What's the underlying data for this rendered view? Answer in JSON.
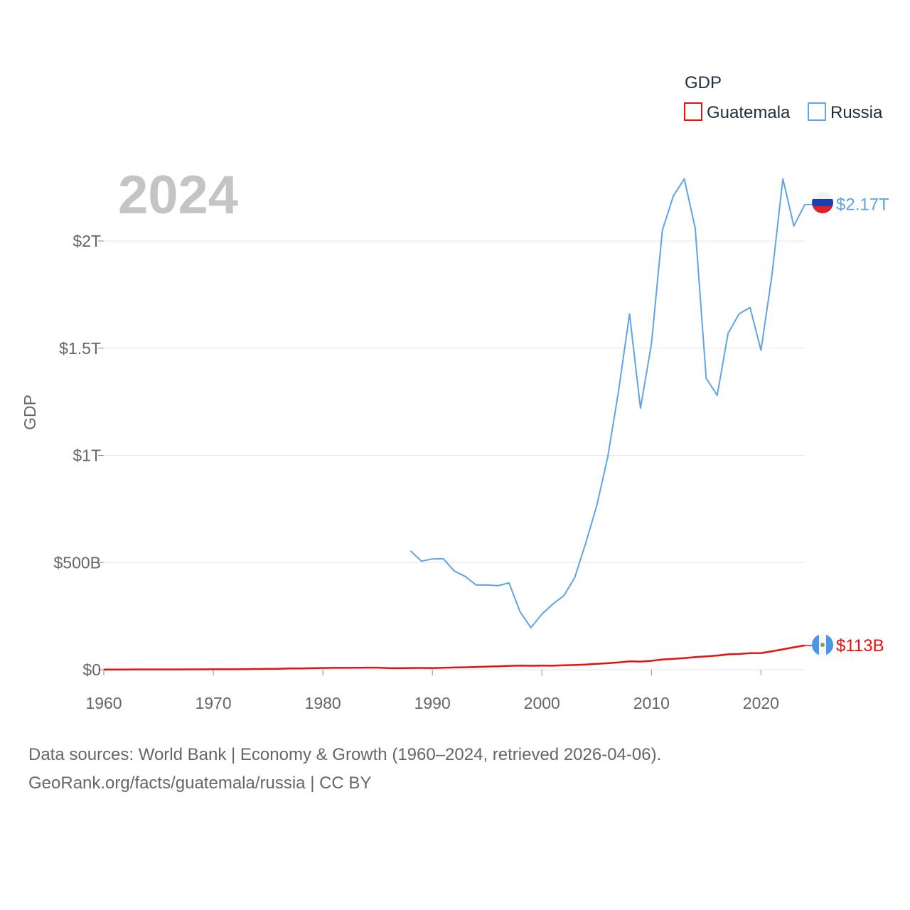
{
  "chart_data": {
    "type": "line",
    "year_label": "2024",
    "ylabel": "GDP",
    "legend_title": "GDP",
    "ylim": [
      0,
      2400000000000
    ],
    "xlim": [
      1960,
      2024
    ],
    "y_ticks": [
      {
        "value": 0,
        "label": "$0"
      },
      {
        "value": 500000000000,
        "label": "$500B"
      },
      {
        "value": 1000000000000,
        "label": "$1T"
      },
      {
        "value": 1500000000000,
        "label": "$1.5T"
      },
      {
        "value": 2000000000000,
        "label": "$2T"
      }
    ],
    "x_ticks": [
      {
        "value": 1960,
        "label": "1960"
      },
      {
        "value": 1970,
        "label": "1970"
      },
      {
        "value": 1980,
        "label": "1980"
      },
      {
        "value": 1990,
        "label": "1990"
      },
      {
        "value": 2000,
        "label": "2000"
      },
      {
        "value": 2010,
        "label": "2010"
      },
      {
        "value": 2020,
        "label": "2020"
      }
    ],
    "series": [
      {
        "name": "Guatemala",
        "color": "#e8110f",
        "end_label": "$113B",
        "x": [
          1960,
          1961,
          1962,
          1963,
          1964,
          1965,
          1966,
          1967,
          1968,
          1969,
          1970,
          1971,
          1972,
          1973,
          1974,
          1975,
          1976,
          1977,
          1978,
          1979,
          1980,
          1981,
          1982,
          1983,
          1984,
          1985,
          1986,
          1987,
          1988,
          1989,
          1990,
          1991,
          1992,
          1993,
          1994,
          1995,
          1996,
          1997,
          1998,
          1999,
          2000,
          2001,
          2002,
          2003,
          2004,
          2005,
          2006,
          2007,
          2008,
          2009,
          2010,
          2011,
          2012,
          2013,
          2014,
          2015,
          2016,
          2017,
          2018,
          2019,
          2020,
          2021,
          2022,
          2023,
          2024
        ],
        "values": [
          1040000000,
          1080000000,
          1140000000,
          1200000000,
          1300000000,
          1330000000,
          1390000000,
          1450000000,
          1600000000,
          1730000000,
          1900000000,
          1980000000,
          2100000000,
          2570000000,
          3160000000,
          3650000000,
          4360000000,
          5480000000,
          6070000000,
          6900000000,
          7880000000,
          8600000000,
          8720000000,
          9050000000,
          9470000000,
          9720000000,
          7230000000,
          7080000000,
          7870000000,
          8410000000,
          7650000000,
          9410000000,
          10440000000,
          11400000000,
          12980000000,
          14660000000,
          15780000000,
          17790000000,
          19400000000,
          18320000000,
          19290000000,
          18700000000,
          20780000000,
          21920000000,
          23960000000,
          27210000000,
          30230000000,
          34110000000,
          39140000000,
          37730000000,
          41340000000,
          47650000000,
          50390000000,
          53850000000,
          58830000000,
          62190000000,
          66040000000,
          71620000000,
          73250000000,
          77170000000,
          77600000000,
          86050000000,
          95000000000,
          104400000000,
          113000000000
        ]
      },
      {
        "name": "Russia",
        "color": "#5fa4e6",
        "end_label": "$2.17T",
        "x": [
          1988,
          1989,
          1990,
          1991,
          1992,
          1993,
          1994,
          1995,
          1996,
          1997,
          1998,
          1999,
          2000,
          2001,
          2002,
          2003,
          2004,
          2005,
          2006,
          2007,
          2008,
          2009,
          2010,
          2011,
          2012,
          2013,
          2014,
          2015,
          2016,
          2017,
          2018,
          2019,
          2020,
          2021,
          2022,
          2023,
          2024
        ],
        "values": [
          554700000000,
          506500000000,
          516800000000,
          517900000000,
          460300000000,
          435100000000,
          395100000000,
          395500000000,
          391700000000,
          404900000000,
          271000000000,
          195900000000,
          259700000000,
          306600000000,
          345500000000,
          430300000000,
          591000000000,
          764000000000,
          989900000000,
          1300000000000,
          1660000000000,
          1220000000000,
          1520000000000,
          2050000000000,
          2210000000000,
          2290000000000,
          2060000000000,
          1360000000000,
          1280000000000,
          1570000000000,
          1660000000000,
          1690000000000,
          1490000000000,
          1840000000000,
          2290000000000,
          2070000000000,
          2170000000000
        ]
      }
    ]
  },
  "footer": {
    "line1": "Data sources: World Bank | Economy & Growth (1960–2024, retrieved 2026-04-06).",
    "line2": "GeoRank.org/facts/guatemala/russia | CC BY"
  }
}
